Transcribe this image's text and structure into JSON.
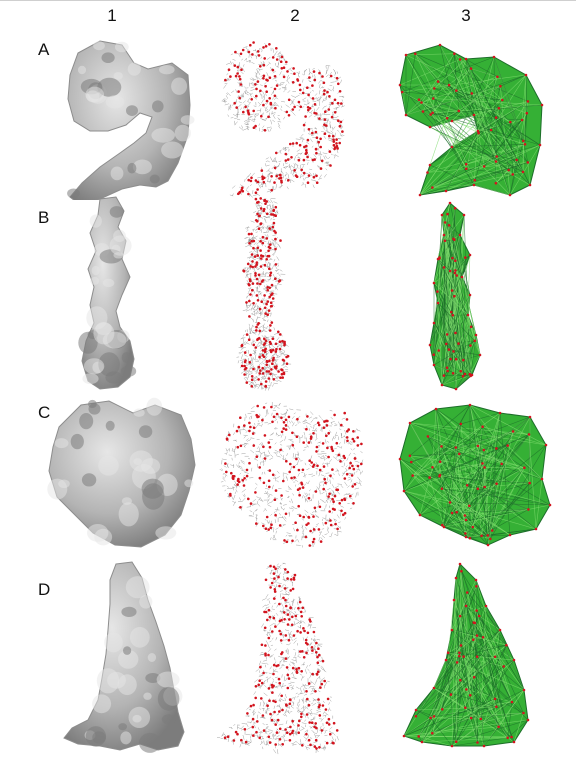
{
  "figure": {
    "column_labels": [
      "1",
      "2",
      "3"
    ],
    "row_labels": [
      "A",
      "B",
      "C",
      "D"
    ],
    "colors": {
      "surface": "#b4b4b4",
      "surface_shade": "#7c7c7c",
      "surface_highlight": "#e6e6e6",
      "point_red": "#d2141e",
      "grid_gray": "#8a8a8a",
      "mesh_green": "#35b035",
      "mesh_dark": "#1d6e2a"
    }
  }
}
